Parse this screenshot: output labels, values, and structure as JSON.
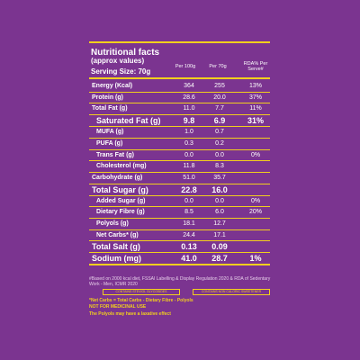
{
  "title": "Nutritional facts",
  "subtitle": "(approx values)",
  "header": {
    "serving": "Serving Size: 70g",
    "col1": "Per 100g",
    "col2": "Per 70g",
    "col3": "RDA% Per Serve#"
  },
  "table": {
    "rows": [
      [
        "Energy (Kcal)",
        "364",
        "255",
        "13%"
      ],
      [
        "Protein (g)",
        "28.6",
        "20.0",
        "37%"
      ],
      [
        "Total Fat (g)",
        "11.0",
        "7.7",
        "11%"
      ],
      [
        "Saturated Fat (g)",
        "9.8",
        "6.9",
        "31%"
      ],
      [
        "MUFA (g)",
        "1.0",
        "0.7",
        null
      ],
      [
        "PUFA (g)",
        "0.3",
        "0.2",
        null
      ],
      [
        "Trans Fat (g)",
        "0.0",
        "0.0",
        "0%"
      ],
      [
        "Cholesterol (mg)",
        "11.8",
        "8.3",
        null
      ],
      [
        "Carbohydrate (g)",
        "51.0",
        "35.7",
        null
      ],
      [
        "Total Sugar (g)",
        "22.8",
        "16.0",
        null
      ],
      [
        "Added Sugar (g)",
        "0.0",
        "0.0",
        "0%"
      ],
      [
        "Dietary Fibre (g)",
        "8.5",
        "6.0",
        "20%"
      ],
      [
        "Polyols (g)",
        "18.1",
        "12.7",
        null
      ],
      [
        "Net Carbs* (g)",
        "24.4",
        "17.1",
        null
      ],
      [
        "Total Salt (g)",
        "0.13",
        "0.09",
        null
      ],
      [
        "Sodium (mg)",
        "41.0",
        "28.7",
        "1%"
      ]
    ]
  },
  "footnote": "#Based on 2000 kcal diet, FSSAI Labelling & Display Regulation 2020 & RDA of Sedentary Work - Men, ICMR 2020",
  "badges": [
    "CONTAINS STEVIOL GLYCOSIDES",
    "CONTAINS NON CALORIC SWEETENER"
  ],
  "notes": [
    "*Net Carbs = Total Carbs - Dietary Fibre - Polyols",
    "NOT FOR MEDICINAL USE",
    "The Polyols may have a laxative effect"
  ]
}
